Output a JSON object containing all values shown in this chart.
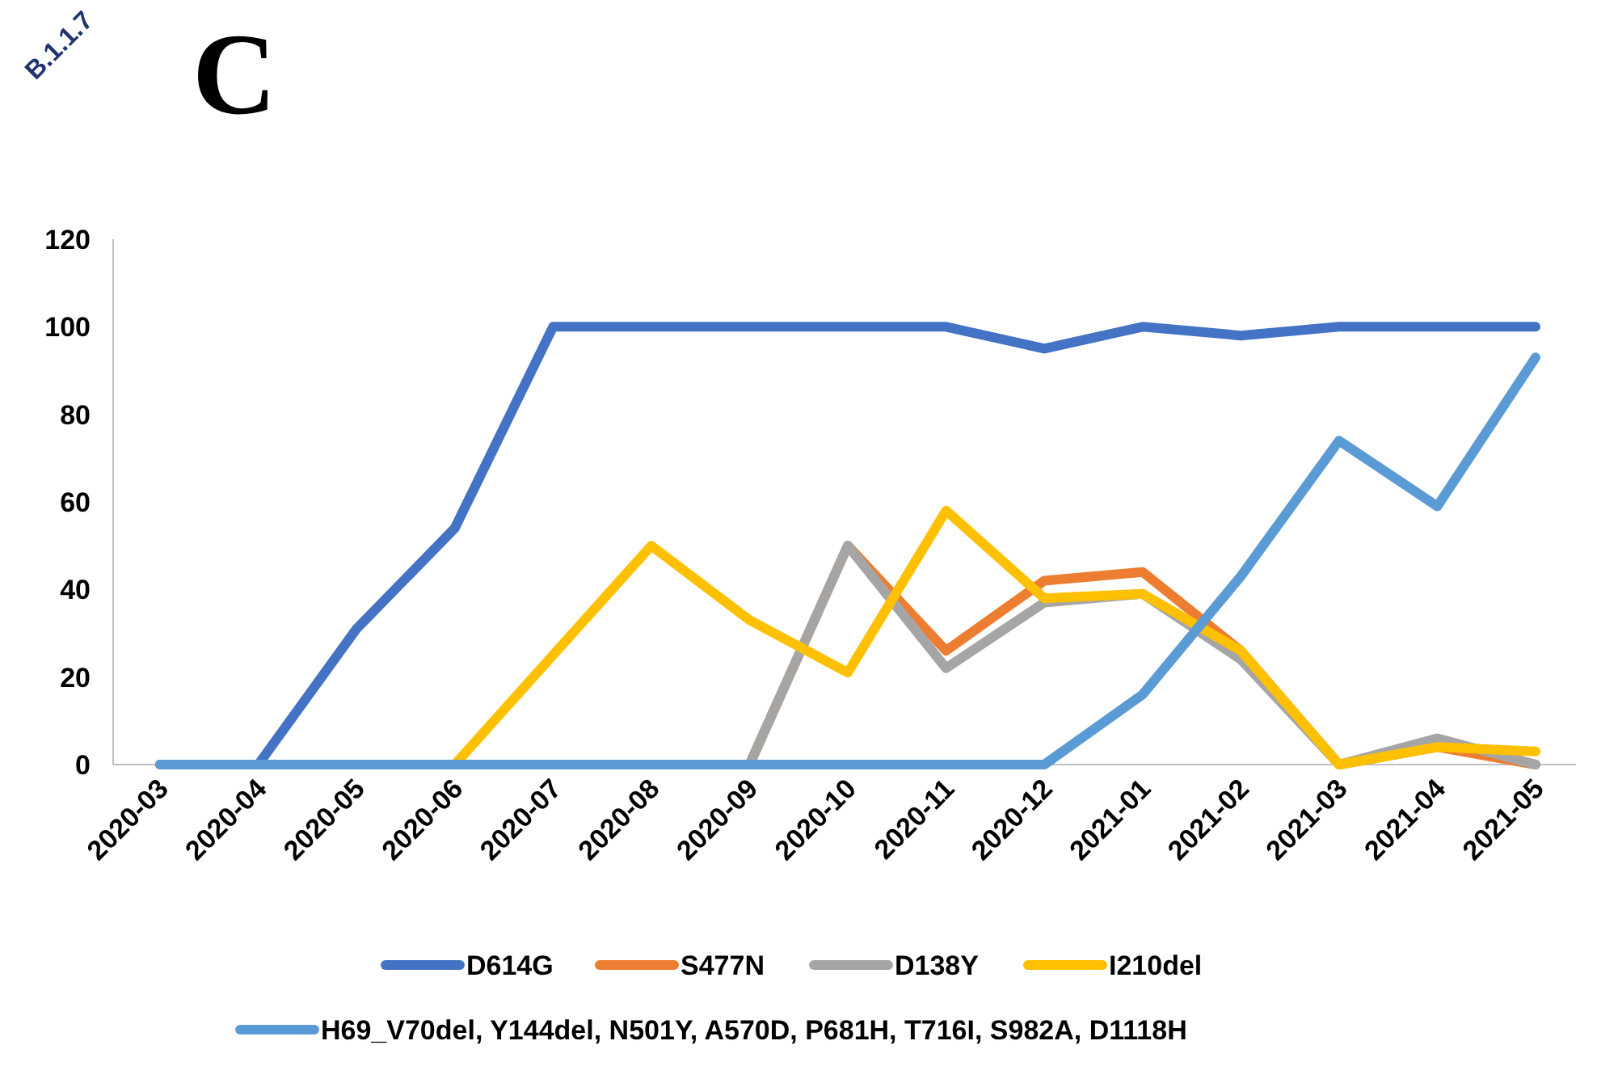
{
  "chart_data": {
    "type": "line",
    "title": "C",
    "annotations": [
      "B.1.1.7"
    ],
    "categories": [
      "2020-03",
      "2020-04",
      "2020-05",
      "2020-06",
      "2020-07",
      "2020-08",
      "2020-09",
      "2020-10",
      "2020-11",
      "2020-12",
      "2021-01",
      "2021-02",
      "2021-03",
      "2021-04",
      "2021-05"
    ],
    "series": [
      {
        "name": "D614G",
        "color": "#4472c4",
        "values": [
          0,
          0,
          31,
          54,
          100,
          100,
          100,
          100,
          100,
          95,
          100,
          98,
          100,
          100,
          100
        ]
      },
      {
        "name": "S477N",
        "color": "#ed7d31",
        "values": [
          null,
          null,
          null,
          null,
          null,
          null,
          0,
          50,
          26,
          42,
          44,
          26,
          0,
          4,
          0
        ]
      },
      {
        "name": "D138Y",
        "color": "#a5a5a5",
        "values": [
          0,
          0,
          0,
          0,
          0,
          0,
          0,
          50,
          22,
          37,
          39,
          24,
          0,
          6,
          0
        ]
      },
      {
        "name": "I210del",
        "color": "#ffc000",
        "values": [
          null,
          null,
          0,
          0,
          25,
          50,
          33,
          21,
          58,
          38,
          39,
          26,
          0,
          4,
          3
        ]
      },
      {
        "name": "H69_V70del, Y144del, N501Y, A570D, P681H, T716I, S982A, D1118H",
        "color": "#5b9bd5",
        "values": [
          0,
          0,
          0,
          0,
          0,
          0,
          0,
          0,
          0,
          0,
          16,
          43,
          74,
          59,
          93
        ]
      }
    ],
    "ylim": [
      0,
      120
    ],
    "yticks": [
      0,
      20,
      40,
      60,
      80,
      100,
      120
    ],
    "grid": false,
    "legend": "bottom",
    "marker": "none",
    "line_style": "solid"
  }
}
